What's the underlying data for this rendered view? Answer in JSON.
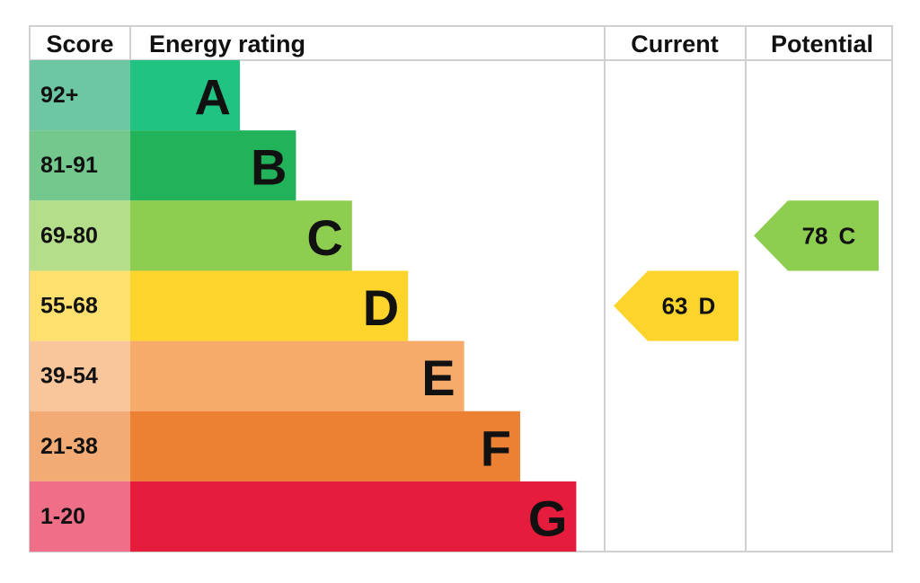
{
  "headers": [
    "Score",
    "Energy rating",
    "Current",
    "Potential"
  ],
  "bands": [
    {
      "score": "92+",
      "letter": "A",
      "color": "#21c383",
      "score_color": "#6cc7a2"
    },
    {
      "score": "81-91",
      "letter": "B",
      "color": "#22b35a",
      "score_color": "#74c78d"
    },
    {
      "score": "69-80",
      "letter": "C",
      "color": "#8dcd4f",
      "score_color": "#b5de8b"
    },
    {
      "score": "55-68",
      "letter": "D",
      "color": "#fdd42b",
      "score_color": "#fde06e"
    },
    {
      "score": "39-54",
      "letter": "E",
      "color": "#f7ab6a",
      "score_color": "#f9c59b"
    },
    {
      "score": "21-38",
      "letter": "F",
      "color": "#ec8134",
      "score_color": "#f2ab74"
    },
    {
      "score": "1-20",
      "letter": "G",
      "color": "#e61c3d",
      "score_color": "#ef6f88"
    }
  ],
  "current": {
    "value": 63,
    "letter": "D"
  },
  "potential": {
    "value": 78,
    "letter": "C"
  }
}
